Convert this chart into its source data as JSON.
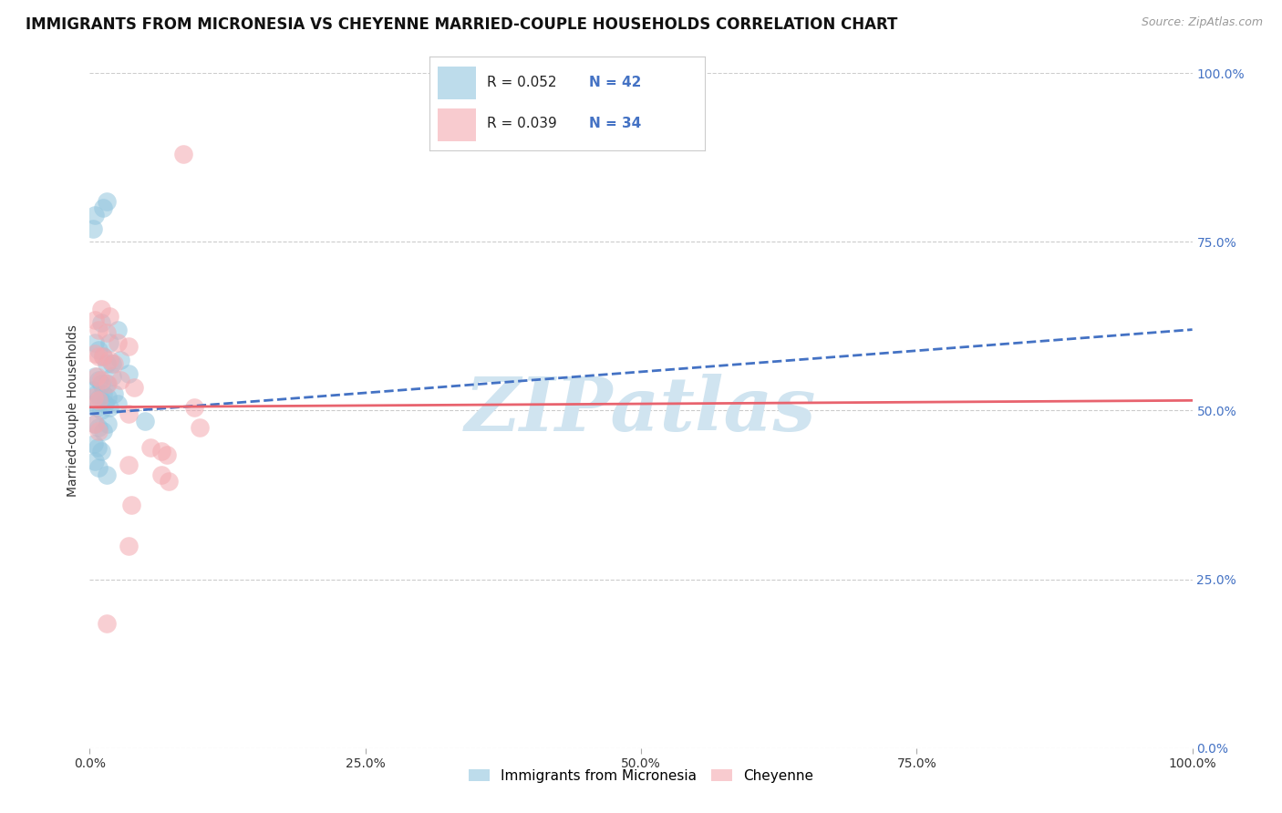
{
  "title": "IMMIGRANTS FROM MICRONESIA VS CHEYENNE MARRIED-COUPLE HOUSEHOLDS CORRELATION CHART",
  "source": "Source: ZipAtlas.com",
  "ylabel": "Married-couple Households",
  "legend_blue_r": "0.052",
  "legend_blue_n": "42",
  "legend_pink_r": "0.039",
  "legend_pink_n": "34",
  "legend_label_blue": "Immigrants from Micronesia",
  "legend_label_pink": "Cheyenne",
  "blue_color": "#92c5de",
  "pink_color": "#f4a9b0",
  "blue_line_color": "#4472c4",
  "pink_line_color": "#e8636e",
  "blue_scatter": [
    [
      0.5,
      79.0
    ],
    [
      1.2,
      80.0
    ],
    [
      1.5,
      81.0
    ],
    [
      0.3,
      77.0
    ],
    [
      1.0,
      63.0
    ],
    [
      2.5,
      62.0
    ],
    [
      1.8,
      60.0
    ],
    [
      0.5,
      60.0
    ],
    [
      0.8,
      59.0
    ],
    [
      1.2,
      58.0
    ],
    [
      1.5,
      57.0
    ],
    [
      2.0,
      57.0
    ],
    [
      2.8,
      57.5
    ],
    [
      0.5,
      55.0
    ],
    [
      0.8,
      54.5
    ],
    [
      1.0,
      54.0
    ],
    [
      1.5,
      54.0
    ],
    [
      2.0,
      55.0
    ],
    [
      3.5,
      55.5
    ],
    [
      0.3,
      53.0
    ],
    [
      0.6,
      52.5
    ],
    [
      0.9,
      52.0
    ],
    [
      1.2,
      52.5
    ],
    [
      1.6,
      52.0
    ],
    [
      2.2,
      52.5
    ],
    [
      0.4,
      51.0
    ],
    [
      0.7,
      50.5
    ],
    [
      1.0,
      50.0
    ],
    [
      1.4,
      51.0
    ],
    [
      1.8,
      50.5
    ],
    [
      2.5,
      51.0
    ],
    [
      0.5,
      48.0
    ],
    [
      0.8,
      47.5
    ],
    [
      1.2,
      47.0
    ],
    [
      1.6,
      48.0
    ],
    [
      5.0,
      48.5
    ],
    [
      0.4,
      45.0
    ],
    [
      0.7,
      44.5
    ],
    [
      1.0,
      44.0
    ],
    [
      0.5,
      42.5
    ],
    [
      0.8,
      41.5
    ],
    [
      1.5,
      40.5
    ]
  ],
  "pink_scatter": [
    [
      8.5,
      88.0
    ],
    [
      1.0,
      65.0
    ],
    [
      1.8,
      64.0
    ],
    [
      0.5,
      63.5
    ],
    [
      0.8,
      62.0
    ],
    [
      1.5,
      61.5
    ],
    [
      2.5,
      60.0
    ],
    [
      3.5,
      59.5
    ],
    [
      0.5,
      58.5
    ],
    [
      0.8,
      58.0
    ],
    [
      1.2,
      58.0
    ],
    [
      1.8,
      57.5
    ],
    [
      2.2,
      57.0
    ],
    [
      0.6,
      55.0
    ],
    [
      1.0,
      54.5
    ],
    [
      1.6,
      54.0
    ],
    [
      2.8,
      54.5
    ],
    [
      4.0,
      53.5
    ],
    [
      0.4,
      52.0
    ],
    [
      0.8,
      51.5
    ],
    [
      3.5,
      49.5
    ],
    [
      9.5,
      50.5
    ],
    [
      10.0,
      47.5
    ],
    [
      0.5,
      48.0
    ],
    [
      0.8,
      47.0
    ],
    [
      5.5,
      44.5
    ],
    [
      6.5,
      44.0
    ],
    [
      7.0,
      43.5
    ],
    [
      6.5,
      40.5
    ],
    [
      3.5,
      42.0
    ],
    [
      3.8,
      36.0
    ],
    [
      7.2,
      39.5
    ],
    [
      1.5,
      18.5
    ],
    [
      3.5,
      30.0
    ]
  ],
  "xlim": [
    0,
    100
  ],
  "ylim": [
    0,
    100
  ],
  "xtick_vals": [
    0,
    25,
    50,
    75,
    100
  ],
  "ytick_vals": [
    0,
    25,
    50,
    75,
    100
  ],
  "blue_trend_x": [
    0,
    100
  ],
  "blue_trend_y": [
    49.5,
    62.0
  ],
  "pink_trend_x": [
    0,
    100
  ],
  "pink_trend_y": [
    50.5,
    51.5
  ],
  "watermark": "ZIPatlas",
  "watermark_color": "#d0e4f0",
  "background_color": "#ffffff",
  "title_fontsize": 12,
  "axis_label_fontsize": 10,
  "tick_fontsize": 10,
  "legend_r_color": "#222222",
  "legend_n_color": "#4472c4",
  "right_tick_color": "#4472c4"
}
